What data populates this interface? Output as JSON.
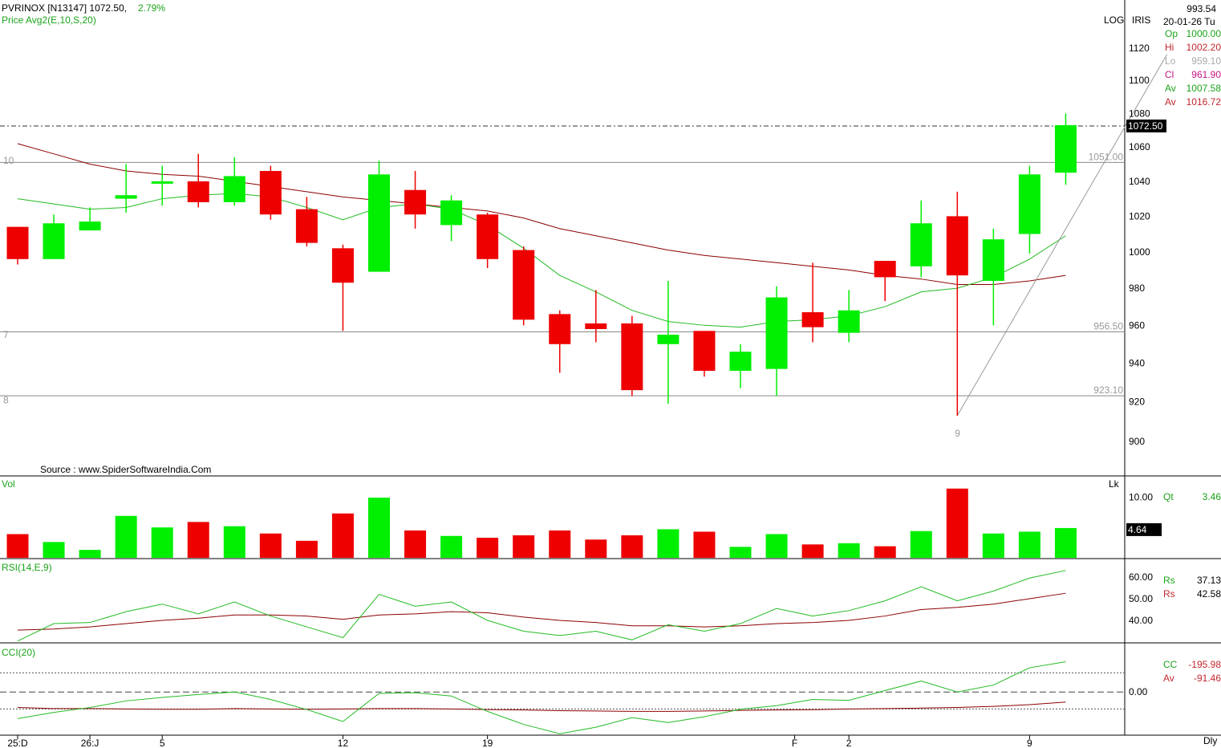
{
  "header": {
    "symbol": "PVRINOX [N13147]",
    "price": "1072.50,",
    "change": "2.79%",
    "ma_label": "Price  Avg2(E,10,S,20)",
    "source": "Source : www.SpiderSoftwareIndia.Com",
    "scale_mode": "LOG",
    "iris_label": "IRIS",
    "top_value": "993.54",
    "date_label": "20-01-26 Tu"
  },
  "info_panel": [
    {
      "label": "Op",
      "value": "1000.00",
      "color": "#1aa31a"
    },
    {
      "label": "Hi",
      "value": "1002.20",
      "color": "#c1272d"
    },
    {
      "label": "Lo",
      "value": "959.10",
      "color": "#aaaaaa"
    },
    {
      "label": "Cl",
      "value": "961.90",
      "color": "#c71585"
    },
    {
      "label": "Av",
      "value": "1007.58",
      "color": "#1aa31a"
    },
    {
      "label": "Av",
      "value": "1016.72",
      "color": "#c1272d"
    }
  ],
  "colors": {
    "up": "#00ee00",
    "down": "#ee0000",
    "ma_fast": "#22bb22",
    "ma_slow": "#8b0000",
    "border": "#000000",
    "grid_line": "#888888",
    "side_text": "#999999"
  },
  "chart_data": [
    {
      "type": "candlestick",
      "title": "PVRINOX [N13147]",
      "scale": "log",
      "ylim": [
        890,
        1135
      ],
      "y_ticks": [
        900,
        920,
        940,
        960,
        980,
        1000,
        1020,
        1040,
        1060,
        1080,
        1100,
        1120
      ],
      "x_labels": [
        {
          "index": 0,
          "label": "25:D"
        },
        {
          "index": 2,
          "label": "26:J"
        },
        {
          "index": 4,
          "label": "5"
        },
        {
          "index": 9,
          "label": "12"
        },
        {
          "index": 13,
          "label": "19"
        },
        {
          "index": 21.5,
          "label": "F"
        },
        {
          "index": 23,
          "label": "2"
        },
        {
          "index": 28,
          "label": "9"
        }
      ],
      "ohlc": [
        {
          "o": 1014,
          "h": 1014,
          "l": 993,
          "c": 996
        },
        {
          "o": 996,
          "h": 1021,
          "l": 996,
          "c": 1016
        },
        {
          "o": 1012,
          "h": 1025,
          "l": 1012,
          "c": 1017
        },
        {
          "o": 1030,
          "h": 1050,
          "l": 1022,
          "c": 1032
        },
        {
          "o": 1040,
          "h": 1049,
          "l": 1026,
          "c": 1040
        },
        {
          "o": 1040,
          "h": 1056,
          "l": 1025,
          "c": 1028
        },
        {
          "o": 1028,
          "h": 1054,
          "l": 1026,
          "c": 1043
        },
        {
          "o": 1046,
          "h": 1049,
          "l": 1018,
          "c": 1021
        },
        {
          "o": 1024,
          "h": 1031,
          "l": 1003,
          "c": 1005
        },
        {
          "o": 1002,
          "h": 1004,
          "l": 957,
          "c": 983
        },
        {
          "o": 989,
          "h": 1052,
          "l": 989,
          "c": 1044
        },
        {
          "o": 1035,
          "h": 1046,
          "l": 1013,
          "c": 1021
        },
        {
          "o": 1015,
          "h": 1032,
          "l": 1006,
          "c": 1029
        },
        {
          "o": 1021,
          "h": 1022,
          "l": 991,
          "c": 996
        },
        {
          "o": 1001,
          "h": 1003,
          "l": 960,
          "c": 963
        },
        {
          "o": 966,
          "h": 968,
          "l": 935,
          "c": 950
        },
        {
          "o": 961,
          "h": 979,
          "l": 951,
          "c": 958
        },
        {
          "o": 961,
          "h": 965,
          "l": 923,
          "c": 926
        },
        {
          "o": 950,
          "h": 984,
          "l": 919,
          "c": 955
        },
        {
          "o": 957,
          "h": 957,
          "l": 933,
          "c": 936
        },
        {
          "o": 936,
          "h": 950,
          "l": 927,
          "c": 946
        },
        {
          "o": 937,
          "h": 981,
          "l": 923,
          "c": 975
        },
        {
          "o": 967,
          "h": 994,
          "l": 951,
          "c": 959
        },
        {
          "o": 956,
          "h": 979,
          "l": 951,
          "c": 968
        },
        {
          "o": 995,
          "h": 995,
          "l": 973,
          "c": 986
        },
        {
          "o": 992,
          "h": 1029,
          "l": 986,
          "c": 1016
        },
        {
          "o": 1020,
          "h": 1034,
          "l": 913,
          "c": 987
        },
        {
          "o": 984,
          "h": 1013,
          "l": 960,
          "c": 1007
        },
        {
          "o": 1010,
          "h": 1049,
          "l": 999,
          "c": 1044
        },
        {
          "o": 1045,
          "h": 1080,
          "l": 1038,
          "c": 1073
        }
      ],
      "series": [
        {
          "name": "Avg2 E10",
          "color": "#22bb22",
          "values": [
            1030,
            1027,
            1024,
            1025,
            1030,
            1032,
            1033,
            1031,
            1025,
            1018,
            1025,
            1027,
            1024,
            1015,
            1002,
            987,
            978,
            968,
            962,
            960,
            959,
            962,
            963,
            965,
            970,
            978,
            980,
            986,
            996,
            1009
          ]
        },
        {
          "name": "Avg2 S20",
          "color": "#8b0000",
          "values": [
            1062,
            1056,
            1050,
            1046,
            1044,
            1043,
            1040,
            1037,
            1034,
            1031,
            1029,
            1027,
            1025,
            1023,
            1019,
            1013,
            1009,
            1005,
            1001,
            998,
            996,
            994,
            992,
            990,
            987,
            985,
            982,
            982,
            984,
            987
          ]
        }
      ],
      "hlines": [
        {
          "value": 1072.5,
          "style": "dashdot",
          "label": "1072.50"
        },
        {
          "value": 1051.0,
          "style": "solid",
          "label": "1051.00"
        },
        {
          "value": 956.5,
          "style": "solid",
          "label": "956.50"
        },
        {
          "value": 923.1,
          "style": "solid",
          "label": "923.10"
        }
      ],
      "left_markers": [
        {
          "value": 1052,
          "label": "10"
        },
        {
          "value": 955,
          "label": "7"
        },
        {
          "value": 921,
          "label": "8"
        }
      ],
      "trendline": [
        {
          "index": 26,
          "value": 913
        },
        {
          "index": 31.8,
          "value": 1116
        }
      ],
      "trend_label": {
        "index": 26,
        "value": 908,
        "label": "9"
      },
      "last_price_label": "1072.50"
    },
    {
      "type": "bar",
      "title": "Vol",
      "unit": "Lk",
      "ylim": [
        0,
        11.5
      ],
      "y_ticks": [
        10.0
      ],
      "y_tick_labels": [
        "10.00"
      ],
      "values": [
        3.9,
        2.6,
        1.3,
        6.9,
        5.0,
        5.9,
        5.2,
        4.0,
        2.8,
        7.3,
        9.9,
        4.5,
        3.6,
        3.3,
        3.7,
        4.5,
        3.0,
        3.7,
        4.7,
        4.3,
        1.8,
        3.9,
        2.2,
        2.4,
        1.9,
        4.4,
        11.4,
        4.0,
        4.3,
        4.9
      ],
      "last_value_label": "4.64",
      "qt_label": "Qt",
      "qt_value": "3.46"
    },
    {
      "type": "line",
      "title": "RSI(14,E,9)",
      "ylim": [
        30,
        67
      ],
      "y_ticks": [
        40,
        50,
        60
      ],
      "y_tick_labels": [
        "40.00",
        "50.00",
        "60.00"
      ],
      "series": [
        {
          "name": "Rs",
          "color": "#22bb22",
          "values": [
            30.5,
            38.5,
            39,
            44,
            47.5,
            43,
            48.5,
            42,
            37,
            32,
            52,
            46.5,
            48.5,
            40,
            35,
            33,
            35,
            31,
            38,
            35,
            38.5,
            45.5,
            42,
            44.5,
            49,
            55.5,
            49,
            53.5,
            59.5,
            63
          ]
        },
        {
          "name": "Rs",
          "color": "#8b0000",
          "values": [
            35.5,
            36,
            37,
            38.5,
            40,
            41,
            42.5,
            42.5,
            42,
            40.5,
            42.5,
            43,
            44,
            43.5,
            41.5,
            40,
            39,
            37.5,
            37.5,
            37,
            37.5,
            38.5,
            39,
            40,
            42,
            45,
            46,
            47.5,
            50,
            52.5
          ]
        }
      ],
      "side_labels": [
        {
          "label": "Rs",
          "value": "37.13",
          "color": "#1aa31a"
        },
        {
          "label": "Rs",
          "value": "42.58",
          "color": "#c1272d"
        }
      ]
    },
    {
      "type": "line",
      "title": "CCI(20)",
      "ylim": [
        -300,
        330
      ],
      "y_ticks": [
        0
      ],
      "y_tick_labels": [
        "0.00"
      ],
      "ref_lines": [
        133,
        -118
      ],
      "series": [
        {
          "name": "CC",
          "color": "#22bb22",
          "values": [
            -185,
            -142,
            -108,
            -62,
            -38,
            -18,
            0,
            -52,
            -122,
            -205,
            -10,
            -5,
            -28,
            -135,
            -225,
            -290,
            -245,
            -178,
            -212,
            -172,
            -120,
            -95,
            -52,
            -58,
            10,
            76,
            0,
            48,
            168,
            210
          ]
        },
        {
          "name": "Av",
          "color": "#8b0000",
          "values": [
            -108,
            -115,
            -115,
            -118,
            -120,
            -120,
            -115,
            -118,
            -120,
            -118,
            -115,
            -115,
            -118,
            -122,
            -125,
            -130,
            -132,
            -135,
            -135,
            -132,
            -128,
            -125,
            -123,
            -118,
            -115,
            -112,
            -108,
            -100,
            -88,
            -70
          ]
        }
      ],
      "side_labels": [
        {
          "label": "CC",
          "value": "-195.98",
          "color": "#1aa31a"
        },
        {
          "label": "Av",
          "value": "-91.46",
          "color": "#c1272d"
        }
      ]
    }
  ],
  "footer": {
    "period_label": "Dly"
  }
}
